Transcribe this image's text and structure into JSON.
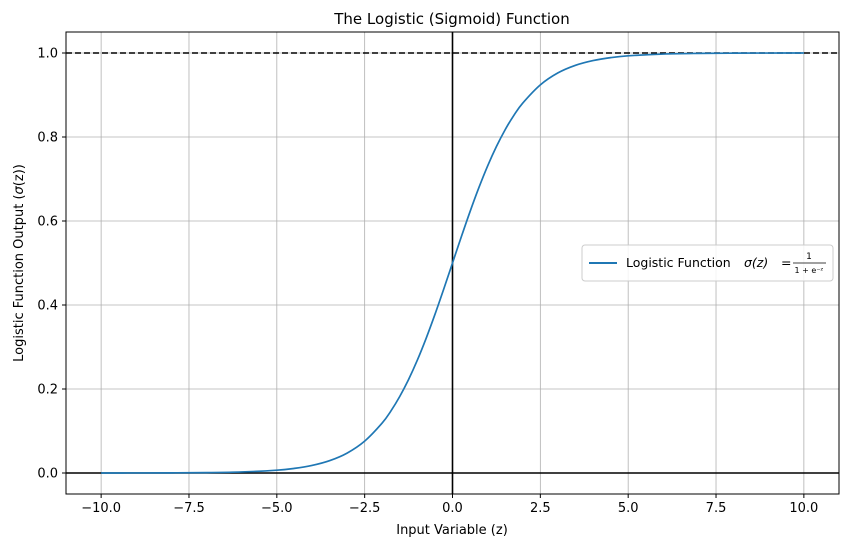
{
  "chart_data": {
    "type": "line",
    "title": "The Logistic (Sigmoid) Function",
    "xlabel": "Input Variable (z)",
    "ylabel_prefix": "Logistic Function Output (",
    "ylabel_symbol": "σ",
    "ylabel_arg": "(z)",
    "ylabel_suffix": ")",
    "xlim": [
      -11,
      11
    ],
    "ylim": [
      -0.05,
      1.05
    ],
    "xticks": [
      -10.0,
      -7.5,
      -5.0,
      -2.5,
      0.0,
      2.5,
      5.0,
      7.5,
      10.0
    ],
    "xtick_labels": [
      "−10.0",
      "−7.5",
      "−5.0",
      "−2.5",
      "0.0",
      "2.5",
      "5.0",
      "7.5",
      "10.0"
    ],
    "yticks": [
      0.0,
      0.2,
      0.4,
      0.6,
      0.8,
      1.0
    ],
    "ytick_labels": [
      "0.0",
      "0.2",
      "0.4",
      "0.6",
      "0.8",
      "1.0"
    ],
    "grid": true,
    "legend_placement": "center-right",
    "series": [
      {
        "name": "Logistic Function",
        "formula_lhs": "σ(z)",
        "formula_num": "1",
        "formula_den": "1 + e⁻ᶻ",
        "color": "#1f77b4",
        "x": [
          -10,
          -9,
          -8,
          -7,
          -6,
          -5,
          -4.5,
          -4,
          -3.5,
          -3,
          -2.5,
          -2,
          -1.75,
          -1.5,
          -1.25,
          -1,
          -0.75,
          -0.5,
          -0.25,
          0,
          0.25,
          0.5,
          0.75,
          1,
          1.25,
          1.5,
          1.75,
          2,
          2.5,
          3,
          3.5,
          4,
          4.5,
          5,
          6,
          7,
          8,
          9,
          10
        ],
        "y": [
          4.54e-05,
          0.000123,
          0.000335,
          0.000911,
          0.00247,
          0.00669,
          0.011,
          0.018,
          0.0293,
          0.0474,
          0.0759,
          0.1192,
          0.148,
          0.1824,
          0.2227,
          0.2689,
          0.3208,
          0.3775,
          0.4378,
          0.5,
          0.5622,
          0.6225,
          0.6792,
          0.7311,
          0.7773,
          0.8176,
          0.852,
          0.8808,
          0.9241,
          0.9526,
          0.9707,
          0.982,
          0.989,
          0.9933,
          0.99753,
          0.99909,
          0.99966,
          0.99988,
          0.99995
        ]
      }
    ],
    "reference_lines": [
      {
        "orientation": "horizontal",
        "value": 1.0,
        "style": "dashed",
        "color": "#000000"
      },
      {
        "orientation": "horizontal",
        "value": 0.0,
        "style": "solid",
        "color": "#000000"
      },
      {
        "orientation": "vertical",
        "value": 0.0,
        "style": "solid",
        "color": "#000000"
      }
    ]
  }
}
